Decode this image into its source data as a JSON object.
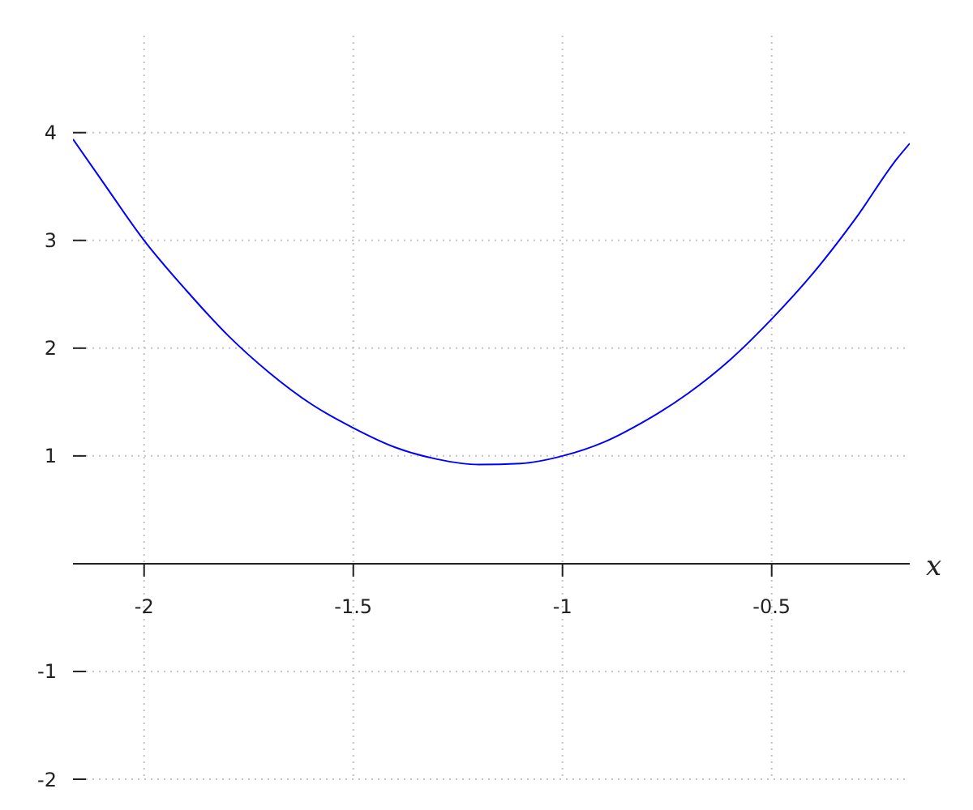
{
  "chart_data": {
    "type": "line",
    "xlabel": "x",
    "x": [
      -2.17,
      -2.1,
      -2.0,
      -1.9,
      -1.8,
      -1.7,
      -1.6,
      -1.5,
      -1.4,
      -1.3,
      -1.2,
      -1.1,
      -1.0,
      -0.9,
      -0.8,
      -0.7,
      -0.6,
      -0.5,
      -0.4,
      -0.3,
      -0.2,
      -0.17
    ],
    "values": [
      3.94,
      3.55,
      3.0,
      2.54,
      2.12,
      1.77,
      1.48,
      1.26,
      1.08,
      0.97,
      0.92,
      0.93,
      1.0,
      1.13,
      1.33,
      1.58,
      1.89,
      2.27,
      2.7,
      3.2,
      3.76,
      3.9
    ],
    "color": "#0000ff",
    "xlim": [
      -2.17,
      -0.17
    ],
    "ylim": [
      -2,
      4.9
    ],
    "xticks": [
      -2,
      -1.5,
      -1,
      -0.5
    ],
    "yticks": [
      -2,
      -1,
      1,
      2,
      3,
      4
    ],
    "grid": true
  }
}
